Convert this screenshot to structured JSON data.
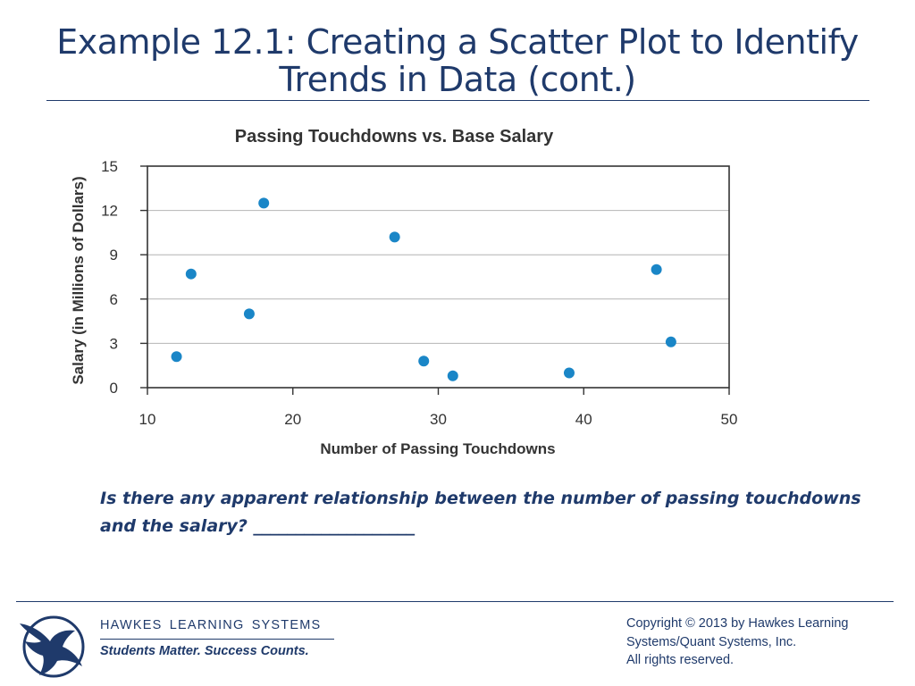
{
  "slide": {
    "title": "Example 12.1: Creating a Scatter Plot to Identify Trends in Data (cont.)",
    "question": "Is there any apparent relationship between the number of passing touchdowns and the salary?  ___________________"
  },
  "footer": {
    "brand": "HAWKES  LEARNING  SYSTEMS",
    "tagline": "Students Matter. Success Counts.",
    "copyright_lines": [
      "Copyright © 2013 by Hawkes Learning",
      "Systems/Quant Systems, Inc.",
      "All rights reserved."
    ]
  },
  "colors": {
    "title": "#1f3a6b",
    "point": "#1a86c7",
    "grid": "#b4b4b4",
    "axis_text": "#333333"
  },
  "chart_data": {
    "type": "scatter",
    "title": "Passing Touchdowns vs. Base Salary",
    "xlabel": "Number of Passing Touchdowns",
    "ylabel": "Salary (in Millions of Dollars)",
    "xlim": [
      10,
      50
    ],
    "ylim": [
      0,
      15
    ],
    "xticks": [
      10,
      20,
      30,
      40,
      50
    ],
    "yticks": [
      0,
      3,
      6,
      9,
      12,
      15
    ],
    "grid": "horizontal",
    "legend": "none",
    "points": [
      {
        "x": 12,
        "y": 2.1
      },
      {
        "x": 13,
        "y": 7.7
      },
      {
        "x": 17,
        "y": 5.0
      },
      {
        "x": 18,
        "y": 12.5
      },
      {
        "x": 27,
        "y": 10.2
      },
      {
        "x": 29,
        "y": 1.8
      },
      {
        "x": 31,
        "y": 0.8
      },
      {
        "x": 39,
        "y": 1.0
      },
      {
        "x": 45,
        "y": 8.0
      },
      {
        "x": 46,
        "y": 3.1
      }
    ]
  }
}
